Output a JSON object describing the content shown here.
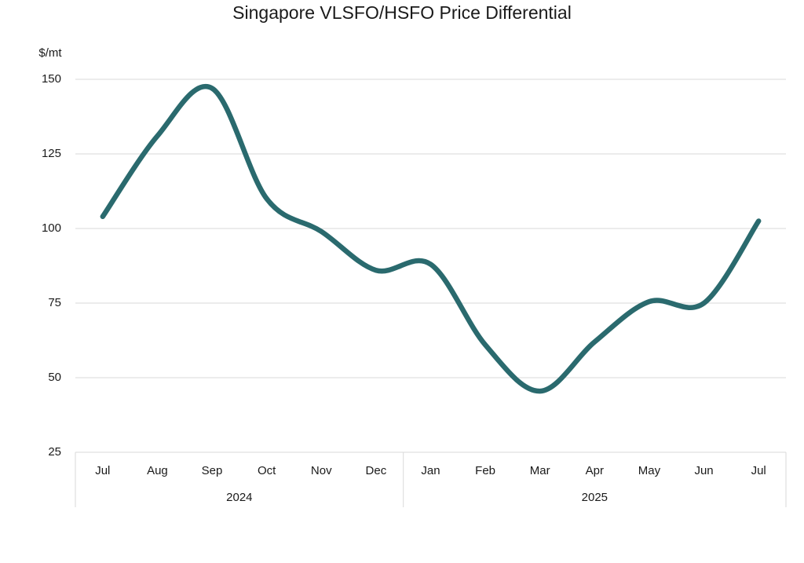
{
  "chart_data": {
    "type": "line",
    "title": "Singapore VLSFO/HSFO Price Differential",
    "y_label": "$/mt",
    "categories": [
      "Jul",
      "Aug",
      "Sep",
      "Oct",
      "Nov",
      "Dec",
      "Jan",
      "Feb",
      "Mar",
      "Apr",
      "May",
      "Jun",
      "Jul"
    ],
    "category_groups": [
      {
        "label": "2024",
        "size": 6
      },
      {
        "label": "2025",
        "size": 7
      }
    ],
    "values": [
      104,
      131,
      147,
      110,
      99,
      86,
      88,
      61,
      45.5,
      62,
      75.5,
      75,
      102.5
    ],
    "color": "#2a6a6e",
    "smooth": true,
    "ylim": [
      25,
      150
    ],
    "yticks": [
      25,
      50,
      75,
      100,
      125,
      150
    ],
    "grid": true
  }
}
